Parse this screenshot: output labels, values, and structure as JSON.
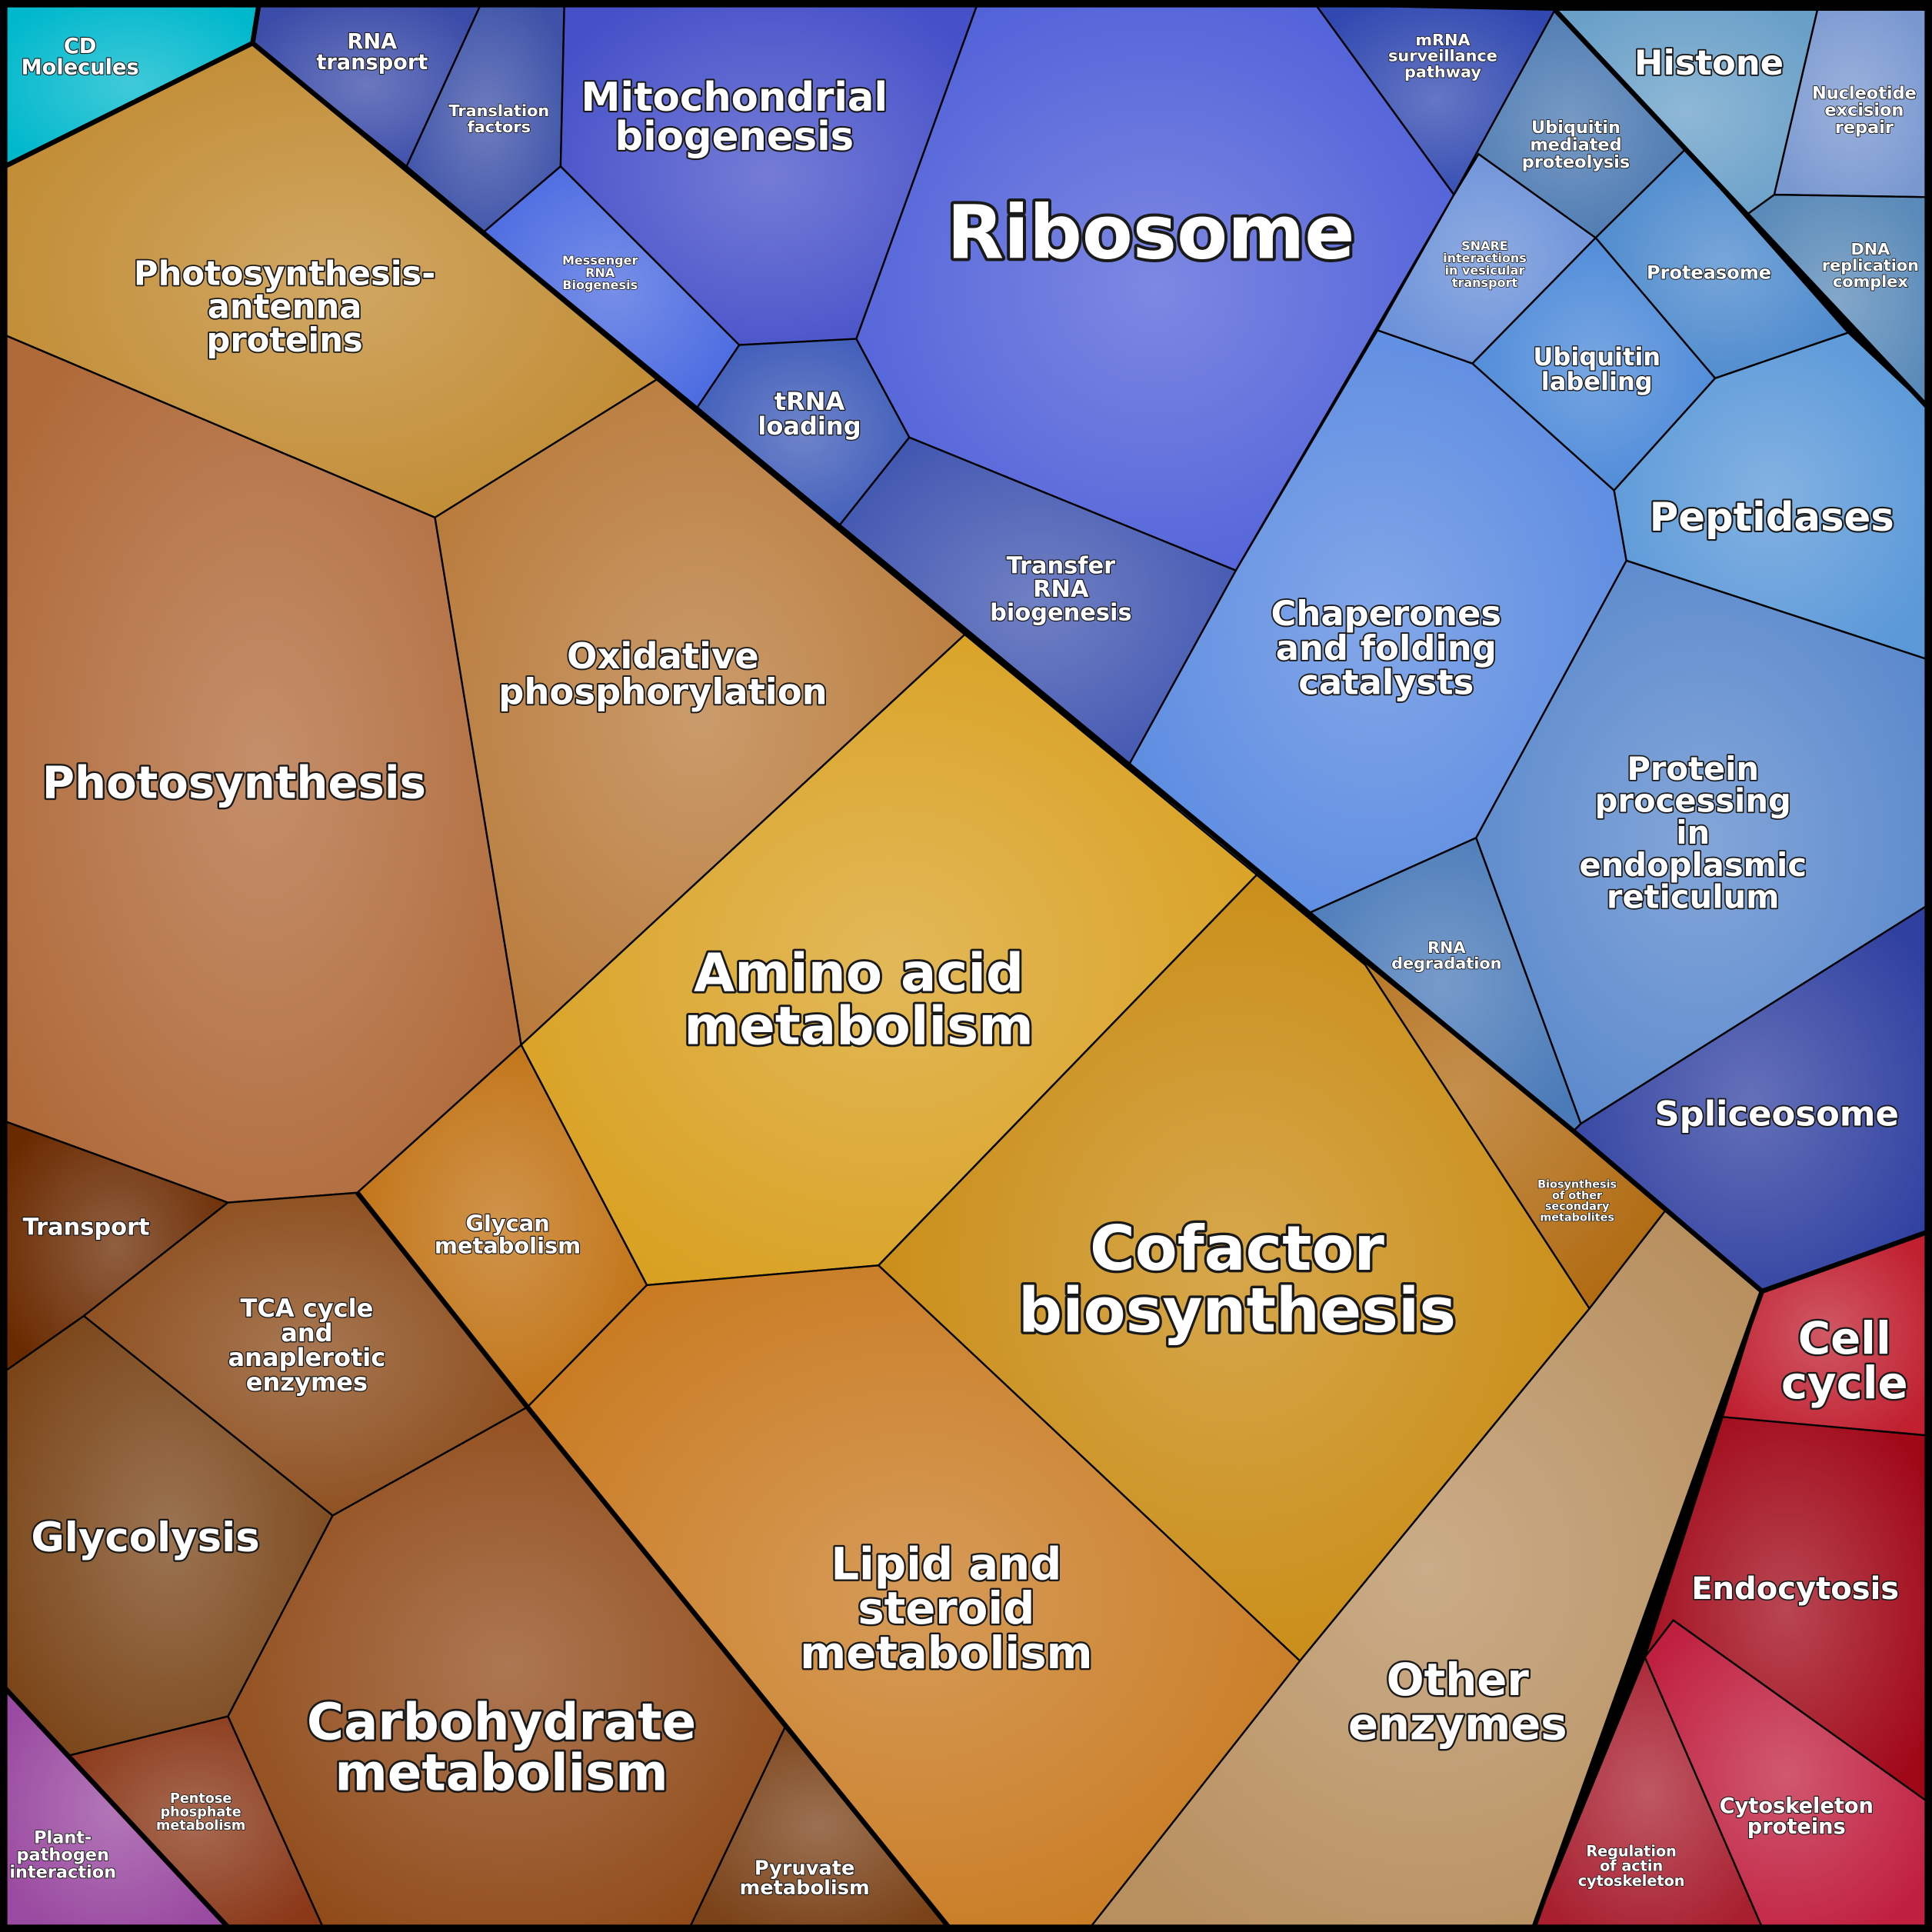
{
  "nodes": [
    {
      "lines": [
        "CD",
        "Molecules"
      ],
      "color": "#00b8cc"
    },
    {
      "lines": [
        "RNA",
        "transport"
      ],
      "color": "#3a4ba8"
    },
    {
      "lines": [
        "Translation",
        "factors"
      ],
      "color": "#3d52a8"
    },
    {
      "lines": [
        "Messenger",
        "RNA",
        "Biogenesis"
      ],
      "color": "#4a6ae0"
    },
    {
      "lines": [
        "Mitochondrial",
        "biogenesis"
      ],
      "color": "#4650c8"
    },
    {
      "lines": [
        "tRNA",
        "loading"
      ],
      "color": "#3d5bb8"
    },
    {
      "lines": [
        "Ribosome"
      ],
      "color": "#5060d8"
    },
    {
      "lines": [
        "mRNA",
        "surveillance",
        "pathway"
      ],
      "color": "#3048b0"
    },
    {
      "lines": [
        "Transfer",
        "RNA",
        "biogenesis"
      ],
      "color": "#4055b0"
    },
    {
      "lines": [
        "Chaperones",
        "and folding",
        "catalysts"
      ],
      "color": "#5a8ae0"
    },
    {
      "lines": [
        "SNARE",
        "interactions",
        "in vesicular",
        "transport"
      ],
      "color": "#6a90d8"
    },
    {
      "lines": [
        "Ubiquitin",
        "mediated",
        "proteolysis"
      ],
      "color": "#4a78b0"
    },
    {
      "lines": [
        "Proteasome"
      ],
      "color": "#4a88cc"
    },
    {
      "lines": [
        "Ubiquitin",
        "labeling"
      ],
      "color": "#4a88d8"
    },
    {
      "lines": [
        "Peptidases"
      ],
      "color": "#5a98d8"
    },
    {
      "lines": [
        "Protein",
        "processing",
        "in",
        "endoplasmic",
        "reticulum"
      ],
      "color": "#5a88cc"
    },
    {
      "lines": [
        "RNA",
        "degradation"
      ],
      "color": "#4a7ab8"
    },
    {
      "lines": [
        "Spliceosome"
      ],
      "color": "#3040a0"
    },
    {
      "lines": [
        "Histone"
      ],
      "color": "#6aa0c8"
    },
    {
      "lines": [
        "Nucleotide",
        "excision",
        "repair"
      ],
      "color": "#7a98d0"
    },
    {
      "lines": [
        "DNA",
        "replication",
        "complex"
      ],
      "color": "#5a8ab8"
    },
    {
      "lines": [
        "Photosynthesis-",
        "antenna",
        "proteins"
      ],
      "color": "#c08a30"
    },
    {
      "lines": [
        "Photosynthesis"
      ],
      "color": "#b06a3a"
    },
    {
      "lines": [
        "Oxidative",
        "phosphorylation"
      ],
      "color": "#b87a3a"
    },
    {
      "lines": [
        "Amino acid",
        "metabolism"
      ],
      "color": "#d8a020"
    },
    {
      "lines": [
        "Glycan",
        "metabolism"
      ],
      "color": "#c07010"
    },
    {
      "lines": [
        "Cofactor",
        "biosynthesis"
      ],
      "color": "#c88a10"
    },
    {
      "lines": [
        "Biosynthesis",
        "of other",
        "secondary",
        "metabolites"
      ],
      "color": "#b06a10"
    },
    {
      "lines": [
        "Other",
        "enzymes"
      ],
      "color": "#b89060"
    },
    {
      "lines": [
        "Lipid and",
        "steroid",
        "metabolism"
      ],
      "color": "#c87a20"
    },
    {
      "lines": [
        "Transport"
      ],
      "color": "#6a2a00"
    },
    {
      "lines": [
        "TCA cycle",
        "and",
        "anaplerotic",
        "enzymes"
      ],
      "color": "#8a4a18"
    },
    {
      "lines": [
        "Glycolysis"
      ],
      "color": "#7a4518"
    },
    {
      "lines": [
        "Carbohydrate",
        "metabolism"
      ],
      "color": "#904a18"
    },
    {
      "lines": [
        "Pentose",
        "phosphate",
        "metabolism"
      ],
      "color": "#8a3818"
    },
    {
      "lines": [
        "Pyruvate",
        "metabolism"
      ],
      "color": "#7a4218"
    },
    {
      "lines": [
        "Plant-",
        "pathogen",
        "interaction"
      ],
      "color": "#9a4aa0"
    },
    {
      "lines": [
        "Cell",
        "cycle"
      ],
      "color": "#c02030"
    },
    {
      "lines": [
        "Endocytosis"
      ],
      "color": "#a00818"
    },
    {
      "lines": [
        "Regulation",
        "of actin",
        "cytoskeleton"
      ],
      "color": "#a82030"
    },
    {
      "lines": [
        "Cytoskeleton",
        "proteins"
      ],
      "color": "#c02040"
    }
  ]
}
